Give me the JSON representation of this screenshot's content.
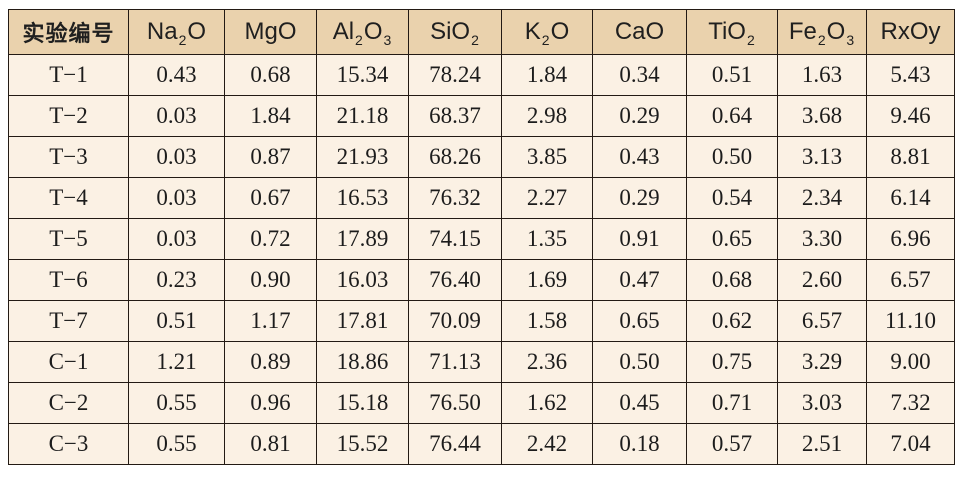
{
  "table": {
    "columns": [
      {
        "label": "实验编号"
      },
      {
        "label": "Na2O",
        "base": "Na",
        "sub": "2",
        "tail": "O"
      },
      {
        "label": "MgO",
        "base": "MgO",
        "sub": "",
        "tail": ""
      },
      {
        "label": "Al2O3",
        "base": "Al",
        "sub": "2",
        "tail": "O",
        "sub2": "3"
      },
      {
        "label": "SiO2",
        "base": "SiO",
        "sub": "2",
        "tail": ""
      },
      {
        "label": "K2O",
        "base": "K",
        "sub": "2",
        "tail": "O"
      },
      {
        "label": "CaO",
        "base": "CaO",
        "sub": "",
        "tail": ""
      },
      {
        "label": "TiO2",
        "base": "TiO",
        "sub": "2",
        "tail": ""
      },
      {
        "label": "Fe2O3",
        "base": "Fe",
        "sub": "2",
        "tail": "O",
        "sub2": "3"
      },
      {
        "label": "RxOy",
        "base": "RxOy",
        "sub": "",
        "tail": ""
      }
    ],
    "rows": [
      [
        "T−1",
        "0.43",
        "0.68",
        "15.34",
        "78.24",
        "1.84",
        "0.34",
        "0.51",
        "1.63",
        "5.43"
      ],
      [
        "T−2",
        "0.03",
        "1.84",
        "21.18",
        "68.37",
        "2.98",
        "0.29",
        "0.64",
        "3.68",
        "9.46"
      ],
      [
        "T−3",
        "0.03",
        "0.87",
        "21.93",
        "68.26",
        "3.85",
        "0.43",
        "0.50",
        "3.13",
        "8.81"
      ],
      [
        "T−4",
        "0.03",
        "0.67",
        "16.53",
        "76.32",
        "2.27",
        "0.29",
        "0.54",
        "2.34",
        "6.14"
      ],
      [
        "T−5",
        "0.03",
        "0.72",
        "17.89",
        "74.15",
        "1.35",
        "0.91",
        "0.65",
        "3.30",
        "6.96"
      ],
      [
        "T−6",
        "0.23",
        "0.90",
        "16.03",
        "76.40",
        "1.69",
        "0.47",
        "0.68",
        "2.60",
        "6.57"
      ],
      [
        "T−7",
        "0.51",
        "1.17",
        "17.81",
        "70.09",
        "1.58",
        "0.65",
        "0.62",
        "6.57",
        "11.10"
      ],
      [
        "C−1",
        "1.21",
        "0.89",
        "18.86",
        "71.13",
        "2.36",
        "0.50",
        "0.75",
        "3.29",
        "9.00"
      ],
      [
        "C−2",
        "0.55",
        "0.96",
        "15.18",
        "76.50",
        "1.62",
        "0.45",
        "0.71",
        "3.03",
        "7.32"
      ],
      [
        "C−3",
        "0.55",
        "0.81",
        "15.52",
        "76.44",
        "2.42",
        "0.18",
        "0.57",
        "2.51",
        "7.04"
      ]
    ]
  },
  "colors": {
    "header_bg": "#ead2ad",
    "body_bg": "#fbf1e4",
    "border": "#231a14"
  }
}
